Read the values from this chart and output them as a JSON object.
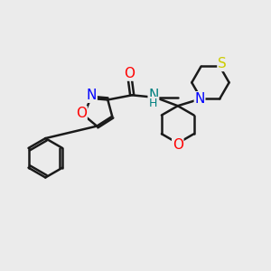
{
  "bg_color": "#ebebeb",
  "bond_color": "#1a1a1a",
  "bond_width": 1.8,
  "atom_colors": {
    "O": "#ff0000",
    "N": "#0000ff",
    "S": "#cccc00",
    "NH": "#008080",
    "C": "#1a1a1a"
  },
  "font_size": 11
}
